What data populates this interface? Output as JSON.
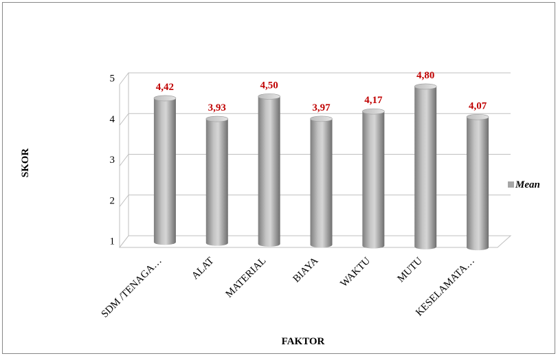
{
  "chart_data": {
    "type": "bar",
    "style": "3d-cylinder",
    "categories": [
      "SDM /TENAGA…",
      "ALAT",
      "MATERIAL",
      "BIAYA",
      "WAKTU",
      "MUTU",
      "KESELAMATA…"
    ],
    "series": [
      {
        "name": "Mean",
        "values": [
          4.42,
          3.93,
          4.5,
          3.97,
          4.17,
          4.8,
          4.07
        ],
        "value_labels": [
          "4,42",
          "3,93",
          "4,50",
          "3,97",
          "4,17",
          "4,80",
          "4,07"
        ],
        "color": "#a6a6a6",
        "label_color": "#c00000"
      }
    ],
    "xlabel": "FAKTOR",
    "ylabel": "SKOR",
    "ylim": [
      1,
      5
    ],
    "yticks": [
      "1",
      "2",
      "3",
      "4",
      "5"
    ],
    "grid": true,
    "legend": "right"
  }
}
